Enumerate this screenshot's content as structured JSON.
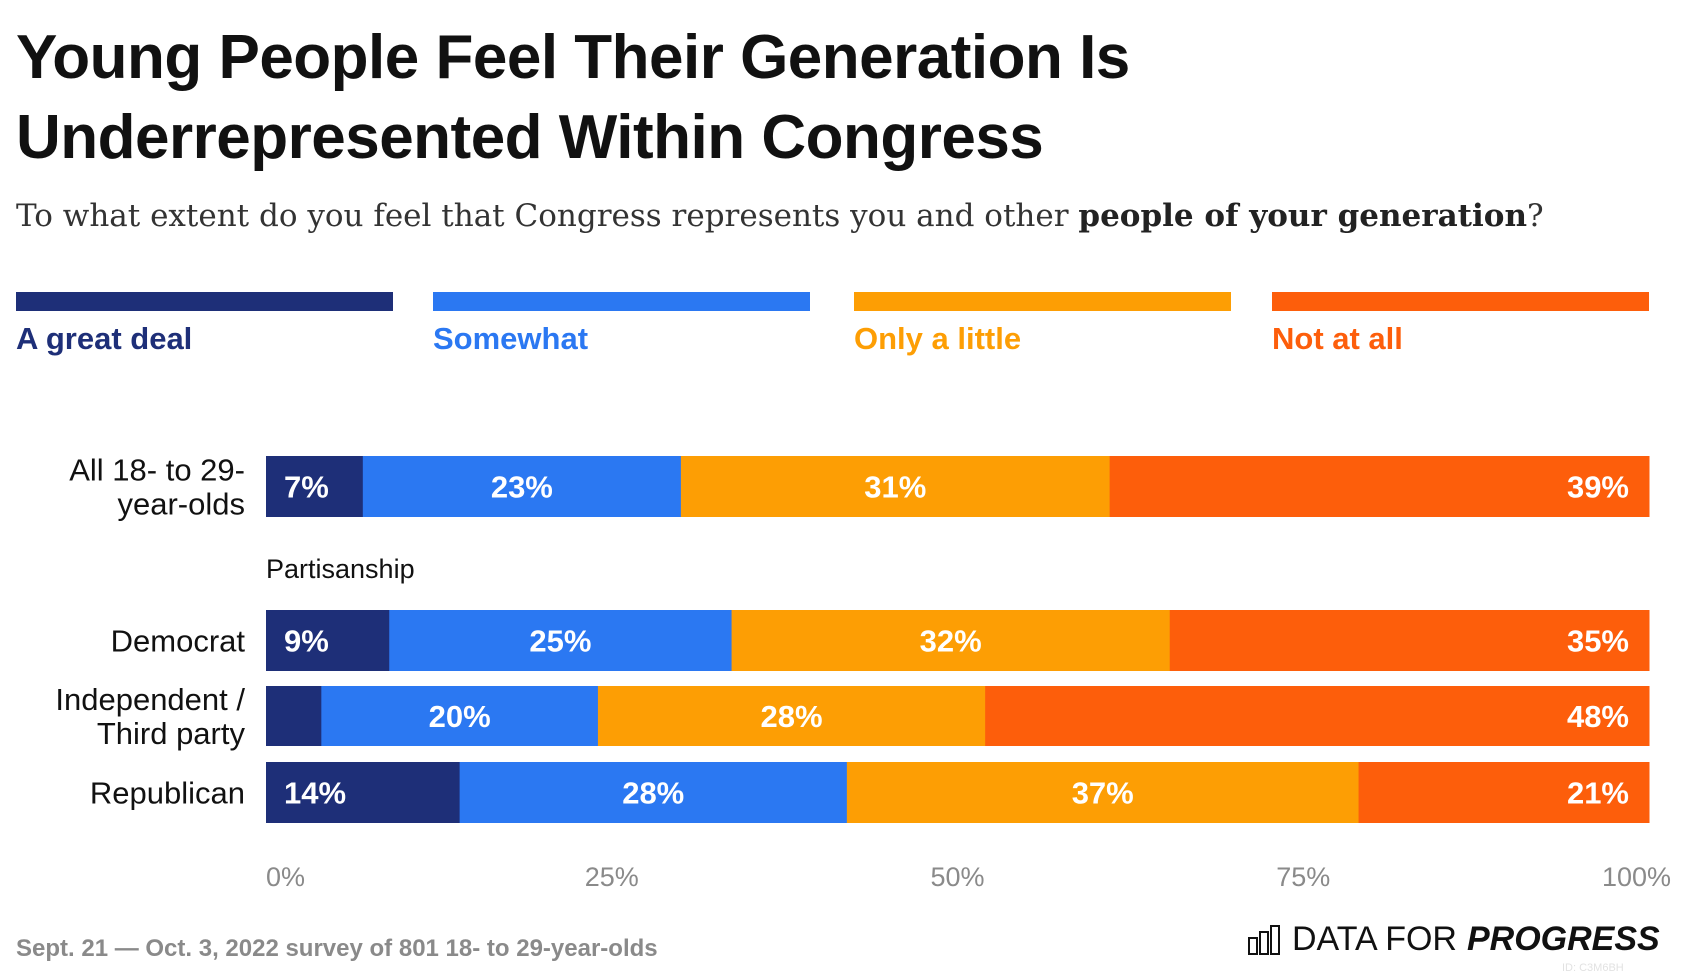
{
  "header": {
    "title_line1": "Young People Feel Their Generation Is",
    "title_line2": "Underrepresented Within Congress",
    "subtitle_pre": "To what extent do you feel that Congress represents you and other ",
    "subtitle_bold": "people of your generation",
    "subtitle_post": "?"
  },
  "chart_data": {
    "type": "bar",
    "orientation": "horizontal",
    "stacked": true,
    "categories": [
      "All 18- to 29-year-olds",
      "Democrat",
      "Independent / Third party",
      "Republican"
    ],
    "group_label": "Partisanship",
    "series": [
      {
        "name": "A great deal",
        "color": "#1e2f78",
        "values": [
          7,
          9,
          4,
          14
        ],
        "labels": [
          "7%",
          "9%",
          "",
          "14%"
        ]
      },
      {
        "name": "Somewhat",
        "color": "#2b78f2",
        "values": [
          23,
          25,
          20,
          28
        ],
        "labels": [
          "23%",
          "25%",
          "20%",
          "28%"
        ]
      },
      {
        "name": "Only a little",
        "color": "#fd9e04",
        "values": [
          31,
          32,
          28,
          37
        ],
        "labels": [
          "31%",
          "32%",
          "28%",
          "37%"
        ]
      },
      {
        "name": "Not at all",
        "color": "#fd5e0b",
        "values": [
          39,
          35,
          48,
          21
        ],
        "labels": [
          "39%",
          "35%",
          "48%",
          "21%"
        ]
      }
    ],
    "xlim": [
      0,
      100
    ],
    "x_ticks": [
      "0%",
      "25%",
      "50%",
      "75%",
      "100%"
    ],
    "grid": false,
    "legend_position": "top"
  },
  "category_label_lines": [
    [
      "All 18- to 29-",
      "year-olds"
    ],
    [
      "Democrat"
    ],
    [
      "Independent /",
      "Third party"
    ],
    [
      "Republican"
    ]
  ],
  "footer": {
    "source": "Sept. 21 — Oct. 3, 2022 survey of 801 18- to 29-year-olds",
    "logo_light": "DATA FOR",
    "logo_bold": "PROGRESS",
    "logo_id": "ID: C3M6BH"
  }
}
